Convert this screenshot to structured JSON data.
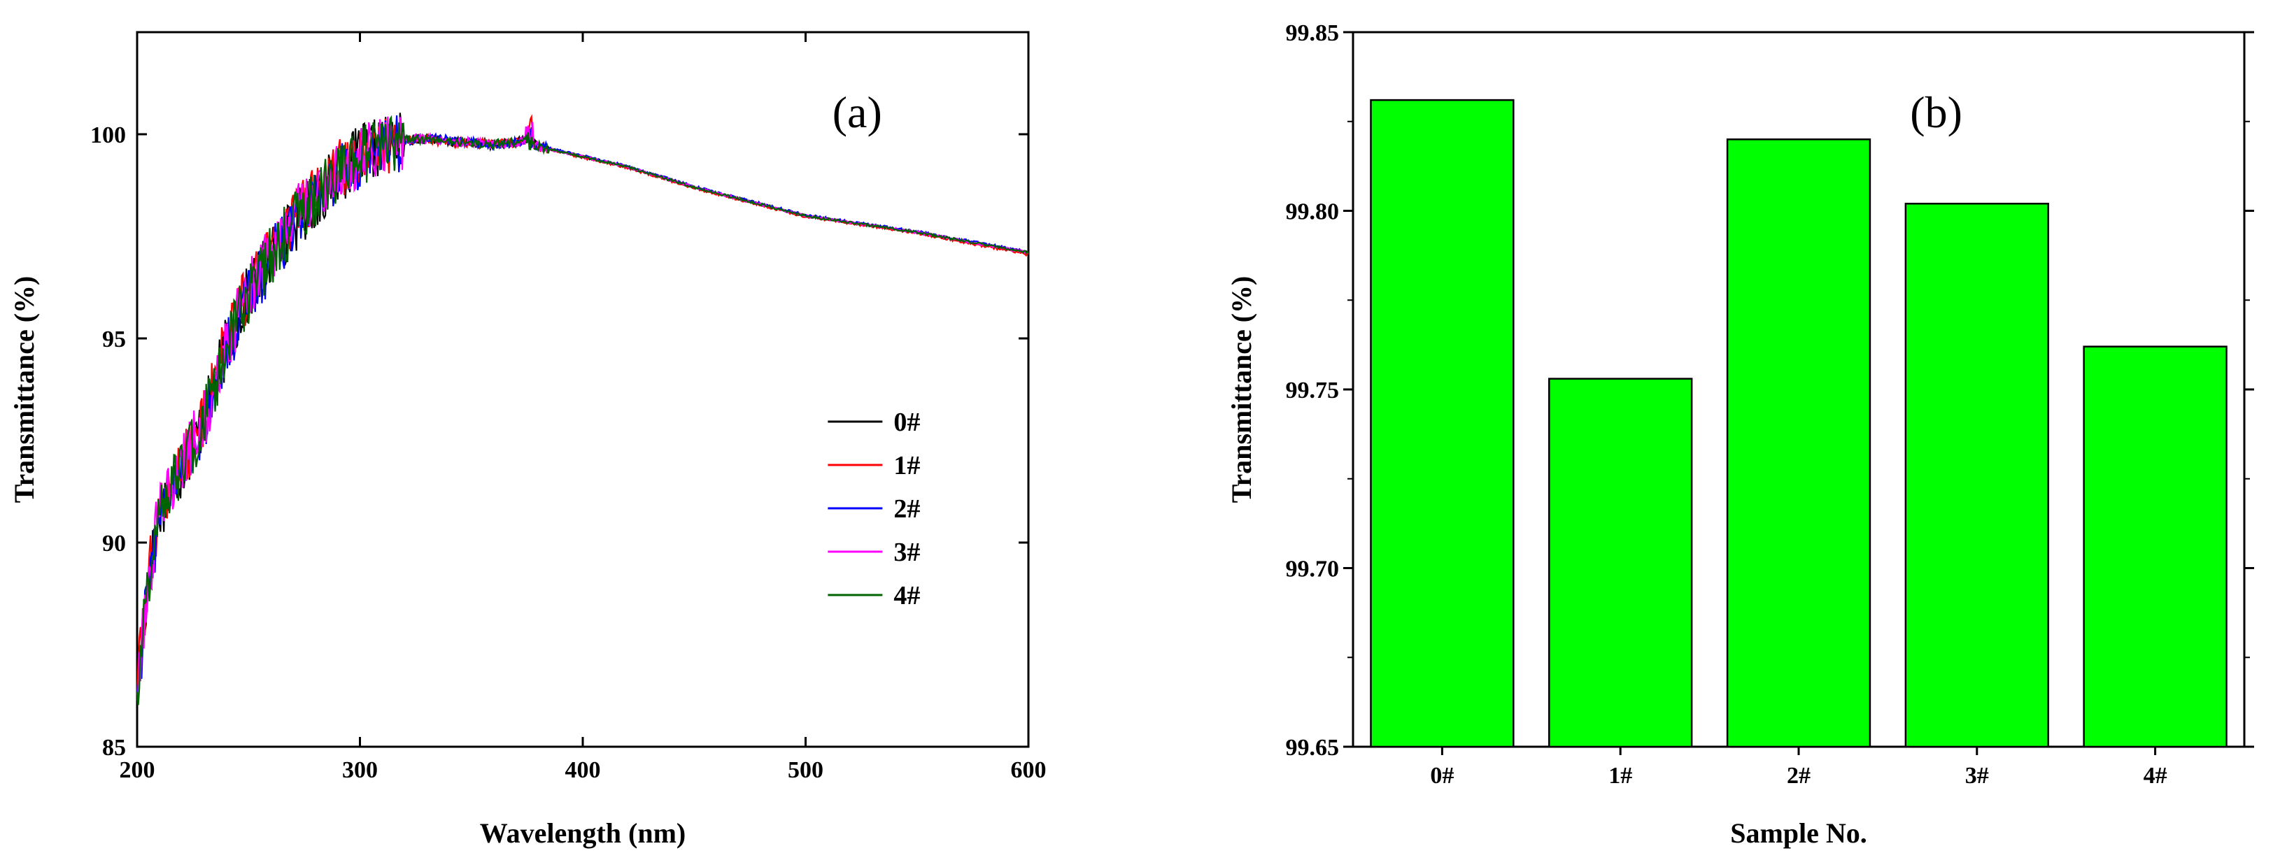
{
  "chart_data": [
    {
      "type": "line",
      "panel_label": "(a)",
      "xlabel": "Wavelength (nm)",
      "ylabel": "Transmittance (%)",
      "xlim": [
        200,
        600
      ],
      "ylim": [
        85,
        102.5
      ],
      "x_ticks": [
        200,
        300,
        400,
        500,
        600
      ],
      "x_tick_labels": [
        "200",
        "300",
        "400",
        "500",
        "600"
      ],
      "y_ticks": [
        85,
        90,
        95,
        100
      ],
      "y_tick_labels": [
        "85",
        "90",
        "95",
        "100"
      ],
      "legend_position": "center-right",
      "x": [
        200,
        205,
        210,
        220,
        230,
        240,
        250,
        260,
        270,
        280,
        290,
        300,
        310,
        320,
        330,
        340,
        350,
        360,
        370,
        375,
        380,
        400,
        420,
        450,
        500,
        550,
        600
      ],
      "series": [
        {
          "name": "0#",
          "color": "#000000",
          "values": [
            86.5,
            89.0,
            90.8,
            91.8,
            93.0,
            94.8,
            96.1,
            97.0,
            97.8,
            98.4,
            99.0,
            99.5,
            99.7,
            99.85,
            99.9,
            99.8,
            99.8,
            99.75,
            99.8,
            99.85,
            99.7,
            99.45,
            99.2,
            98.7,
            98.0,
            97.6,
            97.1
          ]
        },
        {
          "name": "1#",
          "color": "#ff0000",
          "values": [
            86.6,
            89.1,
            90.9,
            91.9,
            93.1,
            94.9,
            96.2,
            97.1,
            97.9,
            98.5,
            99.1,
            99.5,
            99.7,
            99.85,
            99.9,
            99.8,
            99.8,
            99.75,
            99.8,
            99.85,
            99.68,
            99.43,
            99.18,
            98.68,
            97.98,
            97.58,
            97.05
          ]
        },
        {
          "name": "2#",
          "color": "#0000ff",
          "values": [
            86.4,
            88.9,
            90.7,
            91.7,
            92.9,
            94.7,
            96.0,
            96.9,
            97.8,
            98.4,
            99.0,
            99.4,
            99.7,
            99.85,
            99.9,
            99.85,
            99.8,
            99.75,
            99.8,
            99.85,
            99.72,
            99.47,
            99.22,
            98.72,
            98.02,
            97.62,
            97.12
          ]
        },
        {
          "name": "3#",
          "color": "#ff00ff",
          "values": [
            86.5,
            89.0,
            90.8,
            91.9,
            93.0,
            94.8,
            96.2,
            97.1,
            97.9,
            98.5,
            99.0,
            99.5,
            99.7,
            99.85,
            99.9,
            99.8,
            99.8,
            99.75,
            99.8,
            99.85,
            99.7,
            99.45,
            99.2,
            98.7,
            98.0,
            97.6,
            97.1
          ]
        },
        {
          "name": "4#",
          "color": "#006400",
          "values": [
            86.5,
            89.0,
            90.8,
            91.8,
            93.0,
            94.8,
            96.1,
            97.0,
            97.8,
            98.4,
            99.0,
            99.5,
            99.7,
            99.85,
            99.9,
            99.8,
            99.8,
            99.75,
            99.8,
            99.85,
            99.7,
            99.45,
            99.2,
            98.7,
            98.0,
            97.6,
            97.1
          ]
        }
      ]
    },
    {
      "type": "bar",
      "panel_label": "(b)",
      "xlabel": "Sample No.",
      "ylabel": "Transmittance (%)",
      "categories": [
        "0#",
        "1#",
        "2#",
        "3#",
        "4#"
      ],
      "values": [
        99.831,
        99.753,
        99.82,
        99.802,
        99.762
      ],
      "ylim": [
        99.65,
        99.85
      ],
      "y_ticks": [
        99.65,
        99.7,
        99.75,
        99.8,
        99.85
      ],
      "y_tick_labels": [
        "99.65",
        "99.70",
        "99.75",
        "99.80",
        "99.85"
      ],
      "bar_color": "#00ff00"
    }
  ]
}
